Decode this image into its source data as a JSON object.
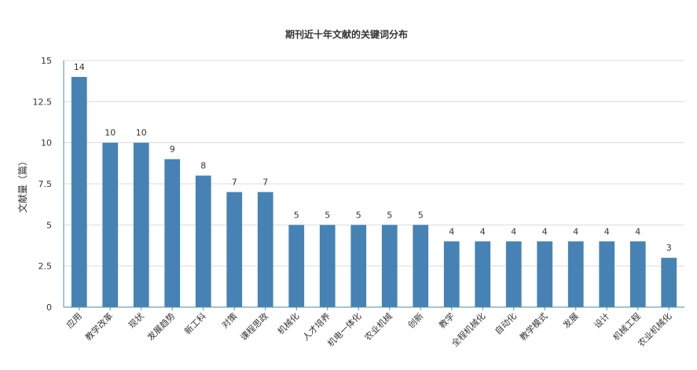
{
  "chart_data": {
    "type": "bar",
    "title": "期刊近十年文献的关键词分布",
    "xlabel": "",
    "ylabel": "文献量（篇）",
    "ylim": [
      0,
      15
    ],
    "yticks": [
      "0",
      "2.5",
      "5",
      "7.5",
      "10",
      "12.5",
      "15"
    ],
    "ytick_values": [
      0,
      2.5,
      5,
      7.5,
      10,
      12.5,
      15
    ],
    "grid": true,
    "legend": "none",
    "bar_color": "#4682b4",
    "categories": [
      "应用",
      "教学改革",
      "现状",
      "发展趋势",
      "新工科",
      "对策",
      "课程思政",
      "机械化",
      "人才培养",
      "机电一体化",
      "农业机械",
      "创新",
      "教学",
      "全程机械化",
      "自动化",
      "教学模式",
      "发展",
      "设计",
      "机械工程",
      "农业机械化"
    ],
    "values": [
      14,
      10,
      10,
      9,
      8,
      7,
      7,
      5,
      5,
      5,
      5,
      5,
      4,
      4,
      4,
      4,
      4,
      4,
      4,
      3
    ],
    "data_labels": [
      "14",
      "10",
      "10",
      "9",
      "8",
      "7",
      "7",
      "5",
      "5",
      "5",
      "5",
      "5",
      "4",
      "4",
      "4",
      "4",
      "4",
      "4",
      "4",
      "3"
    ]
  }
}
